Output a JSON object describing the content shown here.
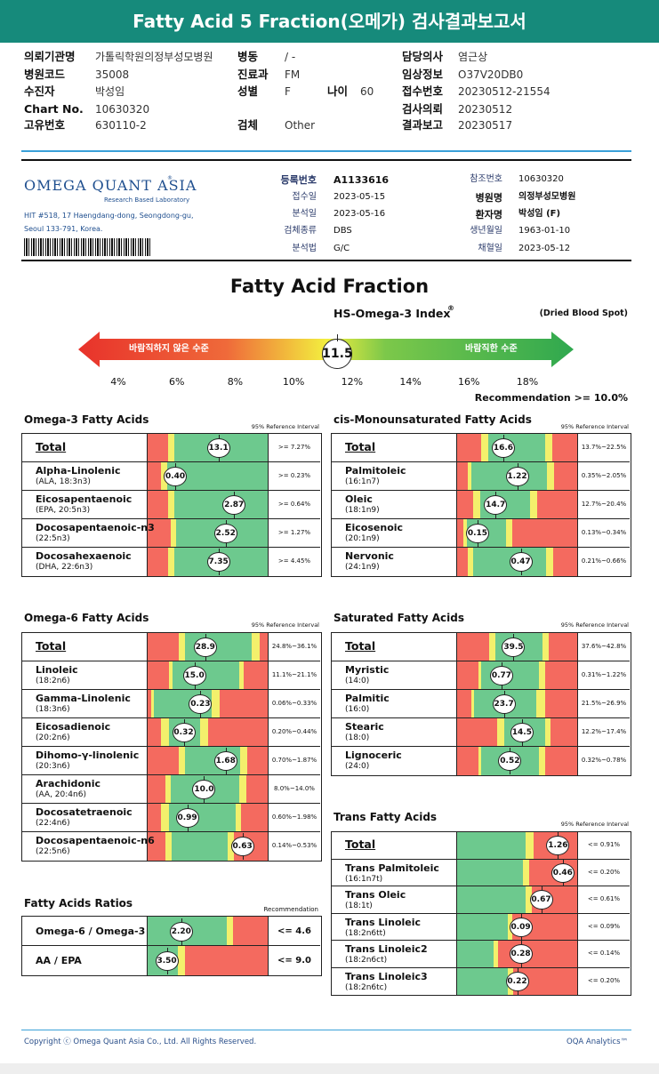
{
  "header": {
    "title": "Fatty Acid 5 Fraction(오메가) 검사결과보고서"
  },
  "patient_info": {
    "left": [
      {
        "label": "의뢰기관명",
        "value": "가톨릭학원의정부성모병원"
      },
      {
        "label": "병원코드",
        "value": "35008"
      },
      {
        "label": "수진자",
        "value": "박성임"
      },
      {
        "label": "Chart No.",
        "value": "10630320"
      },
      {
        "label": "고유번호",
        "value": "630110-2"
      }
    ],
    "middle": [
      {
        "label": "병동",
        "value": "/ -"
      },
      {
        "label": "진료과",
        "value": "FM"
      },
      {
        "label": "성별",
        "value": "F"
      },
      {
        "label": "검체",
        "value": "Other"
      }
    ],
    "middle_extra": {
      "label": "나이",
      "value": "60"
    },
    "right": [
      {
        "label": "담당의사",
        "value": "염근상"
      },
      {
        "label": "임상정보",
        "value": "O37V20DB0"
      },
      {
        "label": "접수번호",
        "value": "20230512-21554"
      },
      {
        "label": "검사의뢰",
        "value": "20230512"
      },
      {
        "label": "결과보고",
        "value": "20230517"
      }
    ]
  },
  "lab": {
    "logo": "OMEGA QUANT ASIA",
    "logo_mark": "®",
    "tagline": "Research Based Laboratory",
    "address": [
      "HIT #518, 17 Haengdang-dong, Seongdong-gu,",
      "Seoul 133-791, Korea."
    ],
    "fields_left": [
      {
        "label": "등록번호",
        "value": "A1133616"
      },
      {
        "label": "접수일",
        "value": "2023-05-15"
      },
      {
        "label": "분석일",
        "value": "2023-05-16"
      },
      {
        "label": "검체종류",
        "value": "DBS"
      },
      {
        "label": "분석법",
        "value": "G/C"
      }
    ],
    "fields_right": [
      {
        "label": "참조번호",
        "value": "10630320"
      },
      {
        "label": "병원명",
        "value": "의정부성모병원"
      },
      {
        "label": "환자명",
        "value": "박성임 (F)"
      },
      {
        "label": "생년월일",
        "value": "1963-01-10"
      },
      {
        "label": "채혈일",
        "value": "2023-05-12"
      }
    ]
  },
  "index": {
    "title": "Fatty Acid Fraction",
    "index_title": "HS-Omega-3 Index",
    "index_mark": "®",
    "specimen": "(Dried Blood Spot)",
    "low_label": "바람직하지 않은 수준",
    "high_label": "바람직한 수준",
    "value": 11.5,
    "scale": [
      {
        "value": 4,
        "label": "4%"
      },
      {
        "value": 6,
        "label": "6%"
      },
      {
        "value": 8,
        "label": "8%"
      },
      {
        "value": 10,
        "label": "10%"
      },
      {
        "value": 12,
        "label": "12%"
      },
      {
        "value": 14,
        "label": "14%"
      },
      {
        "value": 16,
        "label": "16%"
      },
      {
        "value": 18,
        "label": "18%"
      }
    ],
    "recommendation": "Recommendation  >= 10.0%"
  },
  "panels": [
    {
      "title": "Omega-3 Fatty Acids",
      "reference_header": "95% Reference Interval",
      "rows": [
        {
          "name": "Total",
          "value": "13.1",
          "reference": ">= 7.27%"
        },
        {
          "name": "Alpha-Linolenic",
          "sub": "(ALA, 18:3n3)",
          "value": "0.40",
          "reference": ">= 0.23%"
        },
        {
          "name": "Eicosapentaenoic",
          "sub": "(EPA, 20:5n3)",
          "value": "2.87",
          "reference": ">= 0.64%"
        },
        {
          "name": "Docosapentaenoic-n3",
          "sub": "(22:5n3)",
          "value": "2.52",
          "reference": ">= 1.27%"
        },
        {
          "name": "Docosahexaenoic",
          "sub": "(DHA, 22:6n3)",
          "value": "7.35",
          "reference": ">= 4.45%"
        }
      ]
    },
    {
      "title": "cis-Monounsaturated Fatty Acids",
      "reference_header": "95% Reference Interval",
      "rows": [
        {
          "name": "Total",
          "value": "16.6",
          "reference": "13.7%~22.5%"
        },
        {
          "name": "Palmitoleic",
          "sub": "(16:1n7)",
          "value": "1.22",
          "reference": "0.35%~2.05%"
        },
        {
          "name": "Oleic",
          "sub": "(18:1n9)",
          "value": "14.7",
          "reference": "12.7%~20.4%"
        },
        {
          "name": "Eicosenoic",
          "sub": "(20:1n9)",
          "value": "0.15",
          "reference": "0.13%~0.34%"
        },
        {
          "name": "Nervonic",
          "sub": "(24:1n9)",
          "value": "0.47",
          "reference": "0.21%~0.66%"
        }
      ]
    },
    {
      "title": "Omega-6 Fatty Acids",
      "reference_header": "95% Reference Interval",
      "rows": [
        {
          "name": "Total",
          "value": "28.9",
          "reference": "24.8%~36.1%"
        },
        {
          "name": "Linoleic",
          "sub": "(18:2n6)",
          "value": "15.0",
          "reference": "11.1%~21.1%"
        },
        {
          "name": "Gamma-Linolenic",
          "sub": "(18:3n6)",
          "value": "0.23",
          "reference": "0.06%~0.33%"
        },
        {
          "name": "Eicosadienoic",
          "sub": "(20:2n6)",
          "value": "0.32",
          "reference": "0.20%~0.44%"
        },
        {
          "name": "Dihomo-γ-linolenic",
          "sub": "(20:3n6)",
          "value": "1.68",
          "reference": "0.70%~1.87%"
        },
        {
          "name": "Arachidonic",
          "sub": "(AA, 20:4n6)",
          "value": "10.0",
          "reference": "8.0%~14.0%"
        },
        {
          "name": "Docosatetraenoic",
          "sub": "(22:4n6)",
          "value": "0.99",
          "reference": "0.60%~1.98%"
        },
        {
          "name": "Docosapentaenoic-n6",
          "sub": "(22:5n6)",
          "value": "0.63",
          "reference": "0.14%~0.53%"
        }
      ]
    },
    {
      "title": "Saturated Fatty Acids",
      "reference_header": "95% Reference Interval",
      "rows": [
        {
          "name": "Total",
          "value": "39.5",
          "reference": "37.6%~42.8%"
        },
        {
          "name": "Myristic",
          "sub": "(14:0)",
          "value": "0.77",
          "reference": "0.31%~1.22%"
        },
        {
          "name": "Palmitic",
          "sub": "(16:0)",
          "value": "23.7",
          "reference": "21.5%~26.9%"
        },
        {
          "name": "Stearic",
          "sub": "(18:0)",
          "value": "14.5",
          "reference": "12.2%~17.4%"
        },
        {
          "name": "Lignoceric",
          "sub": "(24:0)",
          "value": "0.52",
          "reference": "0.32%~0.78%"
        }
      ]
    },
    {
      "title": "Trans Fatty Acids",
      "reference_header": "95% Reference Interval",
      "rows": [
        {
          "name": "Total",
          "value": "1.26",
          "reference": "<= 0.91%"
        },
        {
          "name": "Trans Palmitoleic",
          "sub": "(16:1n7t)",
          "value": "0.46",
          "reference": "<= 0.20%"
        },
        {
          "name": "Trans Oleic",
          "sub": "(18:1t)",
          "value": "0.67",
          "reference": "<= 0.61%"
        },
        {
          "name": "Trans Linoleic",
          "sub": "(18:2n6tt)",
          "value": "0.09",
          "reference": "<= 0.09%"
        },
        {
          "name": "Trans Linoleic2",
          "sub": "(18:2n6ct)",
          "value": "0.28",
          "reference": "<= 0.14%"
        },
        {
          "name": "Trans Linoleic3",
          "sub": "(18:2n6tc)",
          "value": "0.22",
          "reference": "<= 0.20%"
        }
      ]
    }
  ],
  "ratios": {
    "title": "Fatty Acids Ratios",
    "header": "Recommendation",
    "rows": [
      {
        "name": "Omega-6 / Omega-3",
        "value": "2.20",
        "recommendation": "<= 4.6"
      },
      {
        "name": "AA / EPA",
        "value": "3.50",
        "recommendation": "<= 9.0"
      }
    ]
  },
  "footer": {
    "copyright": "Copyright ⓒ Omega Quant Asia Co., Ltd.  All Rights Reserved.",
    "brand": "OQA Analytics™"
  }
}
